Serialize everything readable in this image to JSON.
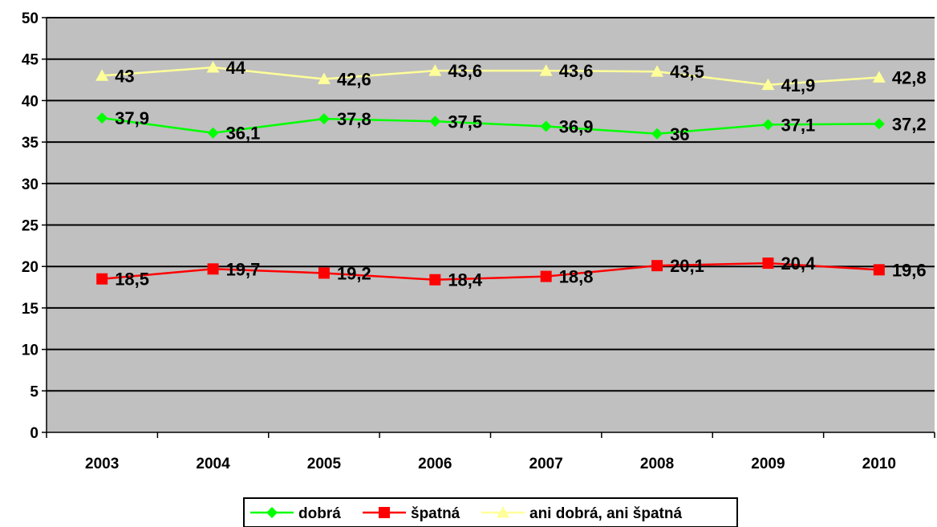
{
  "chart_data": {
    "type": "line",
    "title": "",
    "xlabel": "",
    "ylabel": "",
    "categories": [
      "2003",
      "2004",
      "2005",
      "2006",
      "2007",
      "2008",
      "2009",
      "2010"
    ],
    "ylim": [
      0,
      50
    ],
    "yticks": [
      0,
      5,
      10,
      15,
      20,
      25,
      30,
      35,
      40,
      45,
      50
    ],
    "grid": true,
    "legend_position": "bottom",
    "plot_background": "#C0C0C0",
    "series": [
      {
        "name": "dobrá",
        "color": "#00FF00",
        "marker": "diamond",
        "values": [
          37.9,
          36.1,
          37.8,
          37.5,
          36.9,
          36,
          37.1,
          37.2
        ],
        "labels": [
          "37,9",
          "36,1",
          "37,8",
          "37,5",
          "36,9",
          "36",
          "37,1",
          "37,2"
        ]
      },
      {
        "name": "špatná",
        "color": "#FF0000",
        "marker": "square",
        "values": [
          18.5,
          19.7,
          19.2,
          18.4,
          18.8,
          20.1,
          20.4,
          19.6
        ],
        "labels": [
          "18,5",
          "19,7",
          "19,2",
          "18,4",
          "18,8",
          "20,1",
          "20,4",
          "19,6"
        ]
      },
      {
        "name": "ani dobrá, ani špatná",
        "color": "#FFFF99",
        "marker": "triangle",
        "values": [
          43,
          44,
          42.6,
          43.6,
          43.6,
          43.5,
          41.9,
          42.8
        ],
        "labels": [
          "43",
          "44",
          "42,6",
          "43,6",
          "43,6",
          "43,5",
          "41,9",
          "42,8"
        ]
      }
    ]
  }
}
